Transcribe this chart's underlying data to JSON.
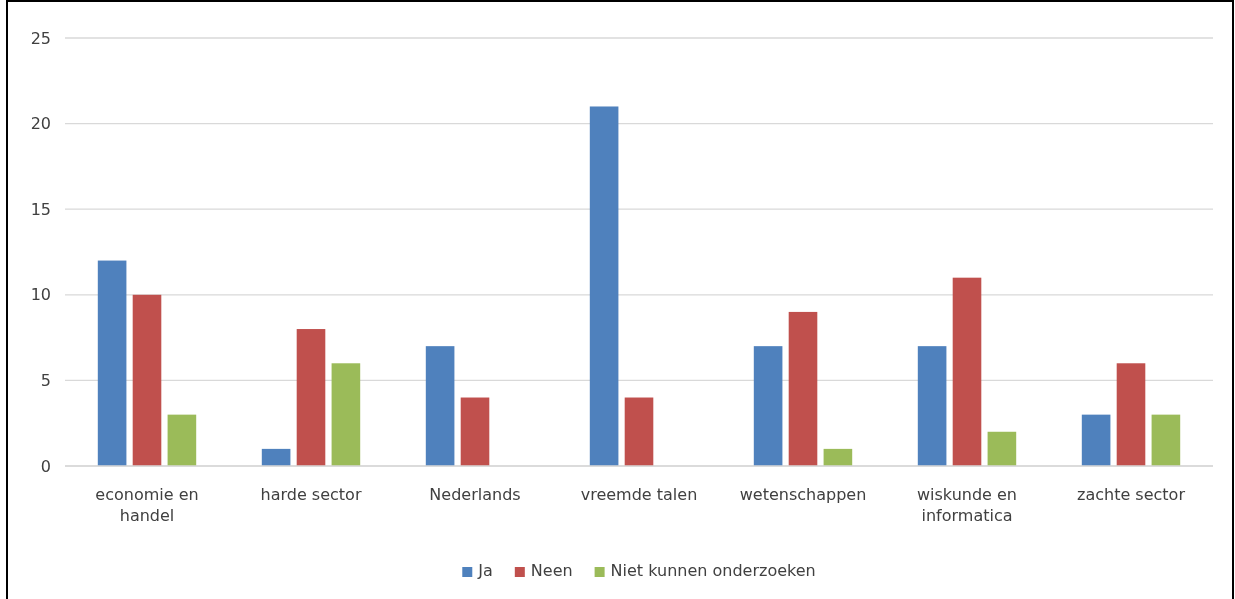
{
  "chart_data": {
    "type": "bar",
    "categories": [
      "economie en handel",
      "harde sector",
      "Nederlands",
      "vreemde talen",
      "wetenschappen",
      "wiskunde en informatica",
      "zachte sector"
    ],
    "series": [
      {
        "name": "Ja",
        "color": "#4f81bd",
        "values": [
          12,
          1,
          7,
          21,
          7,
          7,
          3
        ]
      },
      {
        "name": "Neen",
        "color": "#c0504d",
        "values": [
          10,
          8,
          4,
          4,
          9,
          11,
          6
        ]
      },
      {
        "name": "Niet kunnen onderzoeken",
        "color": "#9bbb59",
        "values": [
          3,
          6,
          null,
          null,
          1,
          2,
          3
        ]
      }
    ],
    "ylim": [
      0,
      25
    ],
    "yticks": [
      0,
      5,
      10,
      15,
      20,
      25
    ],
    "grid": "y",
    "legend": "bottom"
  }
}
